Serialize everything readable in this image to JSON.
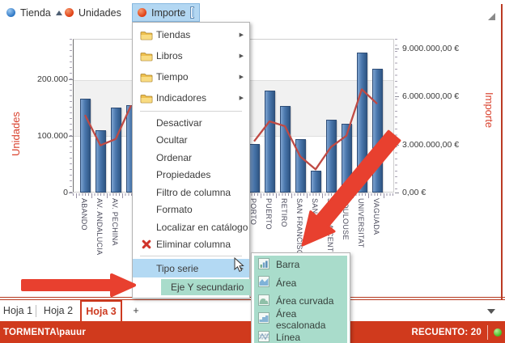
{
  "toolbar": {
    "fields": [
      {
        "label": "Tienda",
        "dot": "blue-dot-icon",
        "sort": "ascending"
      },
      {
        "label": "Unidades",
        "dot": "red-dot-icon"
      },
      {
        "label": "Importe",
        "dot": "red-dot-icon",
        "active": true,
        "extra_icon": "sheet-icon"
      }
    ]
  },
  "chart_data": {
    "type": "bar",
    "series": [
      {
        "name": "Unidades",
        "type": "bar",
        "axis": "left",
        "color": "#4a77ad"
      },
      {
        "name": "Importe",
        "type": "line",
        "axis": "right",
        "color": "#bf4a44"
      }
    ],
    "left_axis": {
      "title": "Unidades",
      "ticks": [
        {
          "label": "200.000",
          "value": 200000
        },
        {
          "label": "100.000",
          "value": 100000
        },
        {
          "label": "0",
          "value": 0
        }
      ],
      "range": [
        0,
        270000
      ]
    },
    "right_axis": {
      "title": "Importe",
      "ticks": [
        {
          "label": "9.000.000,00 €",
          "value": 9000000
        },
        {
          "label": "6.000.000,00 €",
          "value": 6000000
        },
        {
          "label": "3.000.000,00 €",
          "value": 3000000
        },
        {
          "label": "0,00 €",
          "value": 0
        }
      ],
      "range": [
        0,
        9600000
      ]
    },
    "total_slots": 20,
    "points": [
      {
        "label": "ABANDO",
        "slot": 0,
        "units": 167000,
        "importe": 4900000
      },
      {
        "label": "AV. ANDALUCIA",
        "slot": 1,
        "units": 112000,
        "importe": 3000000
      },
      {
        "label": "AV. PECHINA",
        "slot": 2,
        "units": 151000,
        "importe": 3400000
      },
      {
        "label": "",
        "slot": 3,
        "units": 156000,
        "importe": 5500000
      },
      {
        "label": "PORTO",
        "slot": 11,
        "units": 87000,
        "importe": 3250000
      },
      {
        "label": "PUERTO",
        "slot": 12,
        "units": 181000,
        "importe": 4500000
      },
      {
        "label": "RETIRO",
        "slot": 13,
        "units": 155000,
        "importe": 4200000
      },
      {
        "label": "SAN FRANCISCO",
        "slot": 14,
        "units": 96000,
        "importe": 2300000
      },
      {
        "label": "SANT JUST",
        "slot": 15,
        "units": 40000,
        "importe": 1500000
      },
      {
        "label": "SEVILLA CENTRO",
        "slot": 16,
        "units": 130000,
        "importe": 2900000
      },
      {
        "label": "TOULOUSE",
        "slot": 17,
        "units": 123000,
        "importe": 3600000
      },
      {
        "label": "UNIVERSITAT",
        "slot": 18,
        "units": 249000,
        "importe": 6500000
      },
      {
        "label": "VAGUADA",
        "slot": 19,
        "units": 220000,
        "importe": 5600000
      }
    ],
    "grid": "horizontal-band",
    "legend_position": "none"
  },
  "menu": {
    "items": [
      {
        "label": "Tiendas",
        "icon": "folder-icon",
        "submenu": true
      },
      {
        "label": "Libros",
        "icon": "folder-icon",
        "submenu": true
      },
      {
        "label": "Tiempo",
        "icon": "folder-icon",
        "submenu": true
      },
      {
        "label": "Indicadores",
        "icon": "folder-icon",
        "submenu": true
      },
      {
        "type": "separator"
      },
      {
        "label": "Desactivar"
      },
      {
        "label": "Ocultar"
      },
      {
        "label": "Ordenar"
      },
      {
        "label": "Propiedades"
      },
      {
        "label": "Filtro de columna"
      },
      {
        "label": "Formato"
      },
      {
        "label": "Localizar en catálogo"
      },
      {
        "label": "Eliminar columna",
        "icon": "delete-x-icon"
      },
      {
        "type": "separator"
      },
      {
        "label": "Tipo serie",
        "submenu": true,
        "state": "selected"
      },
      {
        "label": "Eje Y secundario",
        "state": "highlighted"
      }
    ]
  },
  "submenu": {
    "items": [
      {
        "label": "Barra",
        "icon": "bar-chart-icon"
      },
      {
        "label": "Área",
        "icon": "area-chart-icon"
      },
      {
        "label": "Área curvada",
        "icon": "curved-area-chart-icon"
      },
      {
        "label": "Área escalonada",
        "icon": "stepped-area-chart-icon"
      },
      {
        "label": "Línea",
        "icon": "line-chart-icon"
      }
    ]
  },
  "tabs": [
    {
      "label": "Hoja 1",
      "active": false
    },
    {
      "label": "Hoja 2",
      "active": false
    },
    {
      "label": "Hoja 3",
      "active": true
    },
    {
      "label": "+",
      "active": false
    }
  ],
  "statusbar": {
    "user": "TORMENTA\\pauur",
    "count": "RECUENTO: 20"
  },
  "colors": {
    "bar": "#4a77ad",
    "line": "#bf4a44",
    "axis_title": "#d9412d",
    "statusbar": "#d03a1d",
    "highlight_teal": "#a9dccb",
    "highlight_blue": "#b3d9f3",
    "annotation_arrow": "#e8402f",
    "toolbar_button": "#b3d7f2"
  }
}
